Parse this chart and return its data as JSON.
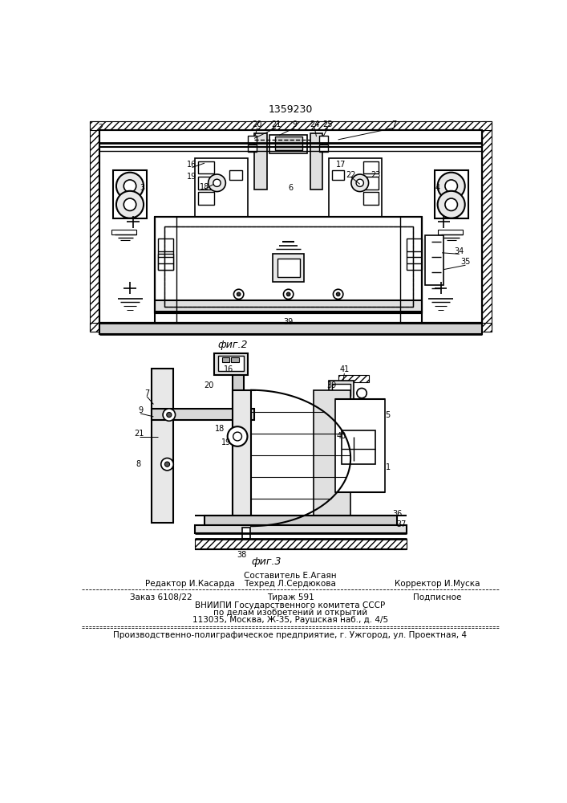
{
  "patent_number": "1359230",
  "fig2_label": "фиг.2",
  "fig3_label": "фиг.3",
  "composer": "Составитель Е.Агаян",
  "editor_left": "Редактор И.Касарда",
  "editor_mid": "Техред Л.Сердюкова",
  "editor_right": "Корректор И.Муска",
  "order": "Заказ 6108/22",
  "tirazh": "Тираж 591",
  "podpisnoe": "Подписное",
  "vniipи_line1": "ВНИИПИ Государственного комитета СССР",
  "vniipи_line2": "по делам изобретений и открытий",
  "vniipи_line3": "113035, Москва, Ж-35, Раушская наб., д. 4/5",
  "factory_line": "Производственно-полиграфическое предприятие, г. Ужгород, ул. Проектная, 4",
  "bg_color": "#ffffff",
  "line_color": "#000000",
  "text_color": "#000000"
}
